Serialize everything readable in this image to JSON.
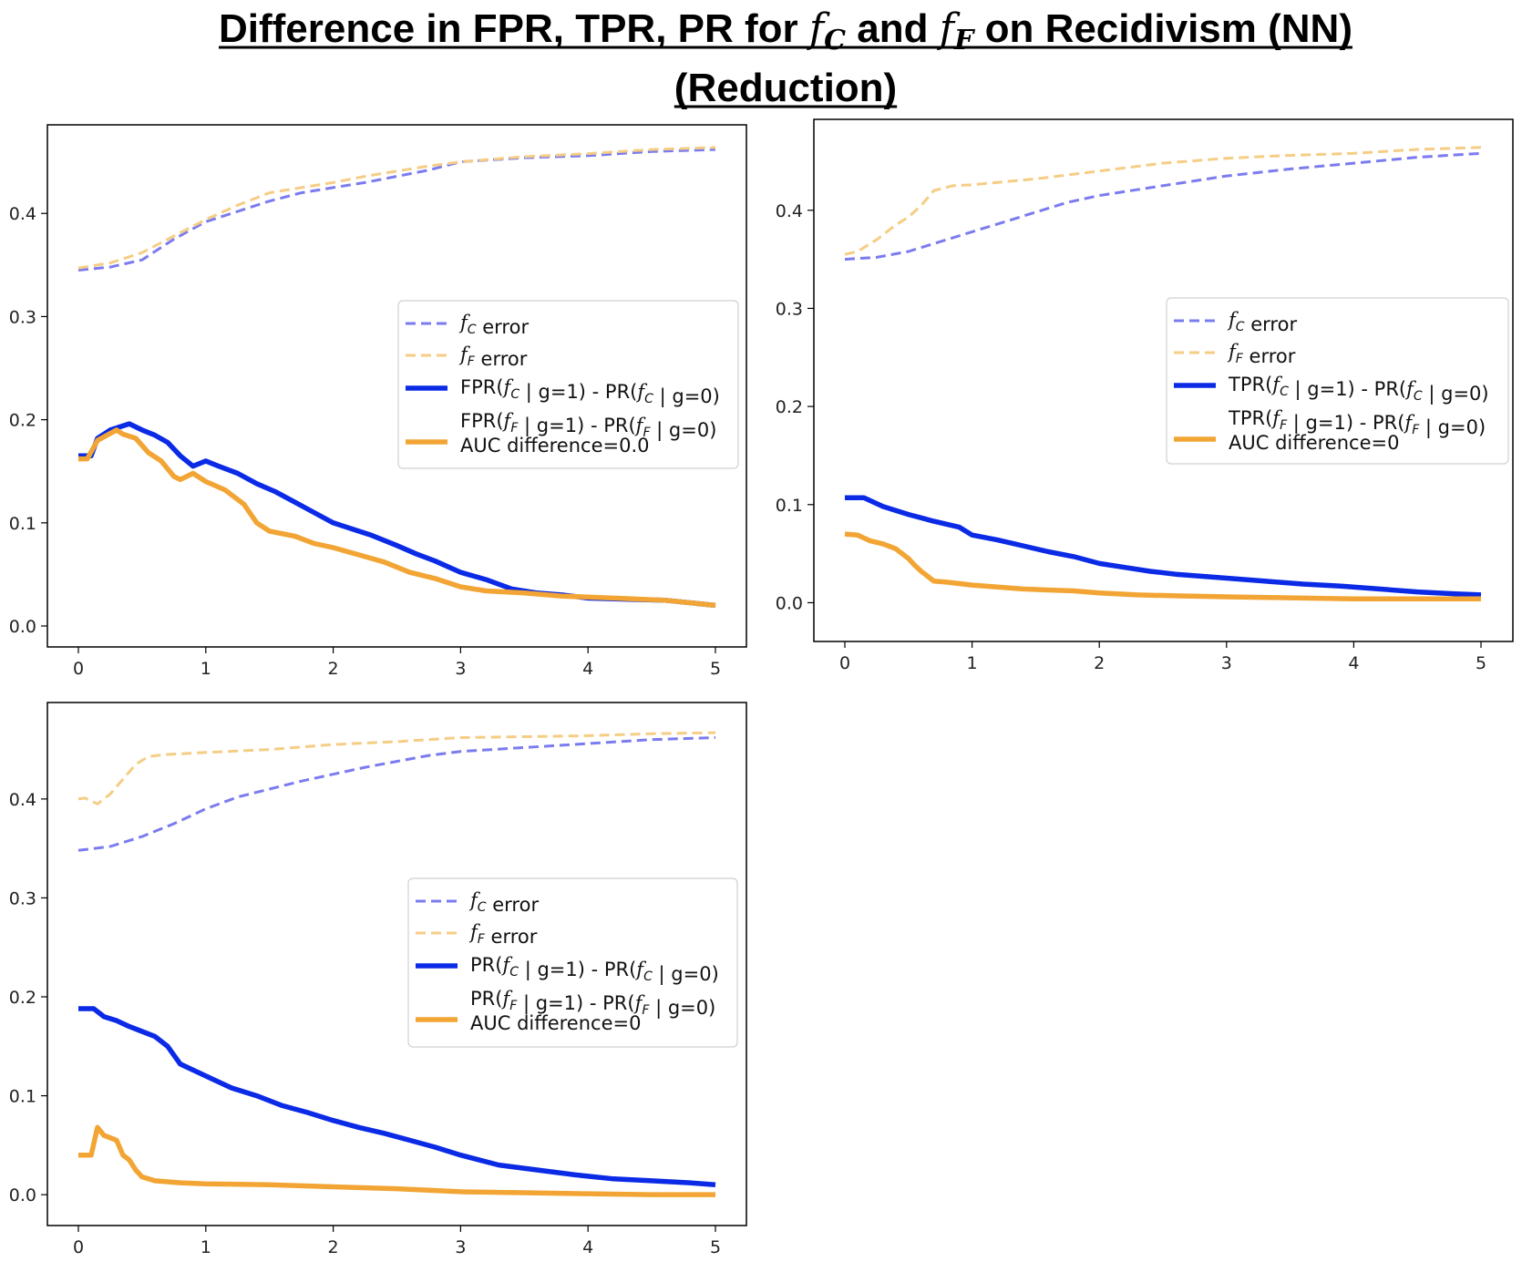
{
  "figure": {
    "title_line1_prefix": "Difference in FPR, TPR, PR for ",
    "title_fc_f": "f",
    "title_fc_sub": "C",
    "title_and": " and ",
    "title_ff_f": "f",
    "title_ff_sub": "F",
    "title_line1_suffix": " on Recidivism (NN)",
    "title_line2": "(Reduction)"
  },
  "colors": {
    "fc_error": "#7b7bf0",
    "ff_error": "#f5cd85",
    "fc_diff": "#0a2ae6",
    "ff_diff": "#f2a534"
  },
  "chart_data": [
    {
      "id": "fpr",
      "type": "line",
      "xlim": [
        0,
        5
      ],
      "ylim": [
        0,
        0.47
      ],
      "xticks": [
        "0",
        "1",
        "2",
        "3",
        "4",
        "5"
      ],
      "yticks": [
        "0.0",
        "0.1",
        "0.2",
        "0.3",
        "0.4"
      ],
      "legend_position": "center-right",
      "legend": {
        "fc_error": "error",
        "ff_error": "error",
        "fc_diff_prefix": "FPR(",
        "fc_diff_suffix": " | g=1) - PR(",
        "fc_diff_end": " | g=0)",
        "ff_diff_prefix": "FPR(",
        "ff_diff_suffix": " | g=1) - PR(",
        "ff_diff_end": " | g=0)",
        "auc": "AUC difference=0.0"
      },
      "series": [
        {
          "name": "fc_error",
          "style": "dashed",
          "x": [
            0,
            0.25,
            0.5,
            0.75,
            1.0,
            1.25,
            1.5,
            1.75,
            2.0,
            2.25,
            2.5,
            2.75,
            3.0,
            3.5,
            4.0,
            4.5,
            5.0
          ],
          "y": [
            0.345,
            0.348,
            0.355,
            0.375,
            0.392,
            0.402,
            0.412,
            0.42,
            0.425,
            0.43,
            0.436,
            0.442,
            0.45,
            0.454,
            0.456,
            0.46,
            0.462
          ]
        },
        {
          "name": "ff_error",
          "style": "dashed",
          "x": [
            0,
            0.25,
            0.5,
            0.75,
            1.0,
            1.25,
            1.5,
            1.75,
            2.0,
            2.25,
            2.5,
            2.75,
            3.0,
            3.5,
            4.0,
            4.5,
            5.0
          ],
          "y": [
            0.347,
            0.352,
            0.362,
            0.378,
            0.394,
            0.408,
            0.42,
            0.425,
            0.43,
            0.436,
            0.441,
            0.446,
            0.45,
            0.455,
            0.458,
            0.462,
            0.464
          ]
        },
        {
          "name": "fc_diff",
          "style": "solid",
          "x": [
            0,
            0.1,
            0.15,
            0.25,
            0.4,
            0.5,
            0.6,
            0.7,
            0.8,
            0.9,
            1.0,
            1.1,
            1.25,
            1.4,
            1.55,
            1.7,
            1.85,
            2.0,
            2.15,
            2.3,
            2.5,
            2.65,
            2.8,
            3.0,
            3.2,
            3.4,
            3.6,
            3.8,
            4.0,
            4.3,
            4.6,
            5.0
          ],
          "y": [
            0.165,
            0.165,
            0.182,
            0.19,
            0.196,
            0.19,
            0.185,
            0.178,
            0.165,
            0.155,
            0.16,
            0.155,
            0.148,
            0.138,
            0.13,
            0.12,
            0.11,
            0.1,
            0.094,
            0.088,
            0.078,
            0.07,
            0.063,
            0.052,
            0.045,
            0.036,
            0.032,
            0.03,
            0.027,
            0.026,
            0.025,
            0.02
          ]
        },
        {
          "name": "ff_diff",
          "style": "solid",
          "x": [
            0,
            0.07,
            0.15,
            0.3,
            0.35,
            0.45,
            0.55,
            0.65,
            0.75,
            0.8,
            0.9,
            1.0,
            1.15,
            1.3,
            1.4,
            1.5,
            1.7,
            1.85,
            2.0,
            2.2,
            2.4,
            2.6,
            2.8,
            3.0,
            3.2,
            3.5,
            3.8,
            4.2,
            4.6,
            5.0
          ],
          "y": [
            0.162,
            0.162,
            0.18,
            0.19,
            0.186,
            0.182,
            0.168,
            0.16,
            0.145,
            0.142,
            0.148,
            0.14,
            0.132,
            0.118,
            0.1,
            0.092,
            0.087,
            0.08,
            0.076,
            0.069,
            0.062,
            0.052,
            0.046,
            0.038,
            0.034,
            0.032,
            0.029,
            0.027,
            0.025,
            0.02
          ]
        }
      ]
    },
    {
      "id": "tpr",
      "type": "line",
      "xlim": [
        0,
        5
      ],
      "ylim": [
        -0.02,
        0.475
      ],
      "xticks": [
        "0",
        "1",
        "2",
        "3",
        "4",
        "5"
      ],
      "yticks": [
        "0.0",
        "0.1",
        "0.2",
        "0.3",
        "0.4"
      ],
      "legend_position": "center-right",
      "legend": {
        "fc_error": "error",
        "ff_error": "error",
        "fc_diff_prefix": "TPR(",
        "fc_diff_suffix": " | g=1) - PR(",
        "fc_diff_end": " | g=0)",
        "ff_diff_prefix": "TPR(",
        "ff_diff_suffix": " | g=1) - PR(",
        "ff_diff_end": " | g=0)",
        "auc": "AUC difference=0"
      },
      "series": [
        {
          "name": "fc_error",
          "style": "dashed",
          "x": [
            0,
            0.25,
            0.5,
            0.75,
            1.0,
            1.25,
            1.5,
            1.75,
            2.0,
            2.25,
            2.5,
            2.75,
            3.0,
            3.5,
            4.0,
            4.5,
            5.0
          ],
          "y": [
            0.35,
            0.352,
            0.358,
            0.368,
            0.378,
            0.388,
            0.398,
            0.408,
            0.415,
            0.42,
            0.425,
            0.43,
            0.435,
            0.442,
            0.448,
            0.454,
            0.458
          ]
        },
        {
          "name": "ff_error",
          "style": "dashed",
          "x": [
            0,
            0.1,
            0.25,
            0.4,
            0.5,
            0.6,
            0.7,
            0.85,
            1.0,
            1.5,
            2.0,
            2.5,
            3.0,
            3.5,
            4.0,
            4.5,
            5.0
          ],
          "y": [
            0.355,
            0.358,
            0.37,
            0.385,
            0.393,
            0.405,
            0.42,
            0.425,
            0.426,
            0.432,
            0.44,
            0.448,
            0.453,
            0.456,
            0.458,
            0.462,
            0.464
          ]
        },
        {
          "name": "fc_diff",
          "style": "solid",
          "x": [
            0,
            0.15,
            0.3,
            0.5,
            0.7,
            0.9,
            1.0,
            1.2,
            1.4,
            1.6,
            1.8,
            2.0,
            2.2,
            2.4,
            2.6,
            2.8,
            3.0,
            3.3,
            3.6,
            3.9,
            4.2,
            4.5,
            4.8,
            5.0
          ],
          "y": [
            0.107,
            0.107,
            0.098,
            0.09,
            0.083,
            0.077,
            0.069,
            0.064,
            0.058,
            0.052,
            0.047,
            0.04,
            0.036,
            0.032,
            0.029,
            0.027,
            0.025,
            0.022,
            0.019,
            0.017,
            0.014,
            0.011,
            0.009,
            0.008
          ]
        },
        {
          "name": "ff_diff",
          "style": "solid",
          "x": [
            0,
            0.1,
            0.2,
            0.3,
            0.4,
            0.5,
            0.55,
            0.6,
            0.7,
            0.8,
            1.0,
            1.2,
            1.4,
            1.6,
            1.8,
            2.0,
            2.3,
            2.6,
            3.0,
            3.5,
            4.0,
            4.5,
            5.0
          ],
          "y": [
            0.07,
            0.069,
            0.063,
            0.06,
            0.055,
            0.045,
            0.038,
            0.032,
            0.022,
            0.021,
            0.018,
            0.016,
            0.014,
            0.013,
            0.012,
            0.01,
            0.008,
            0.007,
            0.006,
            0.005,
            0.004,
            0.004,
            0.004
          ]
        }
      ]
    },
    {
      "id": "pr",
      "type": "line",
      "xlim": [
        0,
        5
      ],
      "ylim": [
        -0.01,
        0.48
      ],
      "xticks": [
        "0",
        "1",
        "2",
        "3",
        "4",
        "5"
      ],
      "yticks": [
        "0.0",
        "0.1",
        "0.2",
        "0.3",
        "0.4"
      ],
      "legend_position": "center-right",
      "legend": {
        "fc_error": "error",
        "ff_error": "error",
        "fc_diff_prefix": "PR(",
        "fc_diff_suffix": " | g=1) - PR(",
        "fc_diff_end": " | g=0)",
        "ff_diff_prefix": "PR(",
        "ff_diff_suffix": " | g=1) - PR(",
        "ff_diff_end": " | g=0)",
        "auc": "AUC difference=0"
      },
      "series": [
        {
          "name": "fc_error",
          "style": "dashed",
          "x": [
            0,
            0.25,
            0.5,
            0.75,
            1.0,
            1.25,
            1.5,
            1.75,
            2.0,
            2.25,
            2.5,
            2.75,
            3.0,
            3.5,
            4.0,
            4.5,
            5.0
          ],
          "y": [
            0.348,
            0.352,
            0.362,
            0.375,
            0.39,
            0.402,
            0.41,
            0.418,
            0.425,
            0.432,
            0.438,
            0.444,
            0.448,
            0.452,
            0.456,
            0.46,
            0.462
          ]
        },
        {
          "name": "ff_error",
          "style": "dashed",
          "x": [
            0,
            0.05,
            0.1,
            0.15,
            0.25,
            0.35,
            0.45,
            0.55,
            0.7,
            1.0,
            1.5,
            2.0,
            2.5,
            3.0,
            3.5,
            4.0,
            4.5,
            5.0
          ],
          "y": [
            0.4,
            0.401,
            0.398,
            0.395,
            0.405,
            0.42,
            0.435,
            0.443,
            0.445,
            0.447,
            0.45,
            0.455,
            0.458,
            0.462,
            0.463,
            0.464,
            0.466,
            0.467
          ]
        },
        {
          "name": "fc_diff",
          "style": "solid",
          "x": [
            0,
            0.12,
            0.2,
            0.3,
            0.4,
            0.5,
            0.6,
            0.7,
            0.8,
            1.0,
            1.2,
            1.4,
            1.6,
            1.8,
            2.0,
            2.2,
            2.4,
            2.6,
            2.8,
            3.0,
            3.3,
            3.6,
            3.9,
            4.2,
            4.5,
            4.8,
            5.0
          ],
          "y": [
            0.188,
            0.188,
            0.18,
            0.176,
            0.17,
            0.165,
            0.16,
            0.15,
            0.132,
            0.12,
            0.108,
            0.1,
            0.09,
            0.083,
            0.075,
            0.068,
            0.062,
            0.055,
            0.048,
            0.04,
            0.03,
            0.025,
            0.02,
            0.016,
            0.014,
            0.012,
            0.01
          ]
        },
        {
          "name": "ff_diff",
          "style": "solid",
          "x": [
            0,
            0.05,
            0.1,
            0.15,
            0.2,
            0.3,
            0.35,
            0.4,
            0.45,
            0.5,
            0.6,
            0.8,
            1.0,
            1.5,
            2.0,
            2.5,
            3.0,
            3.5,
            4.0,
            4.5,
            5.0
          ],
          "y": [
            0.04,
            0.04,
            0.04,
            0.068,
            0.06,
            0.055,
            0.04,
            0.035,
            0.025,
            0.018,
            0.014,
            0.012,
            0.011,
            0.01,
            0.008,
            0.006,
            0.003,
            0.002,
            0.001,
            0.0,
            0.0
          ]
        }
      ]
    }
  ]
}
